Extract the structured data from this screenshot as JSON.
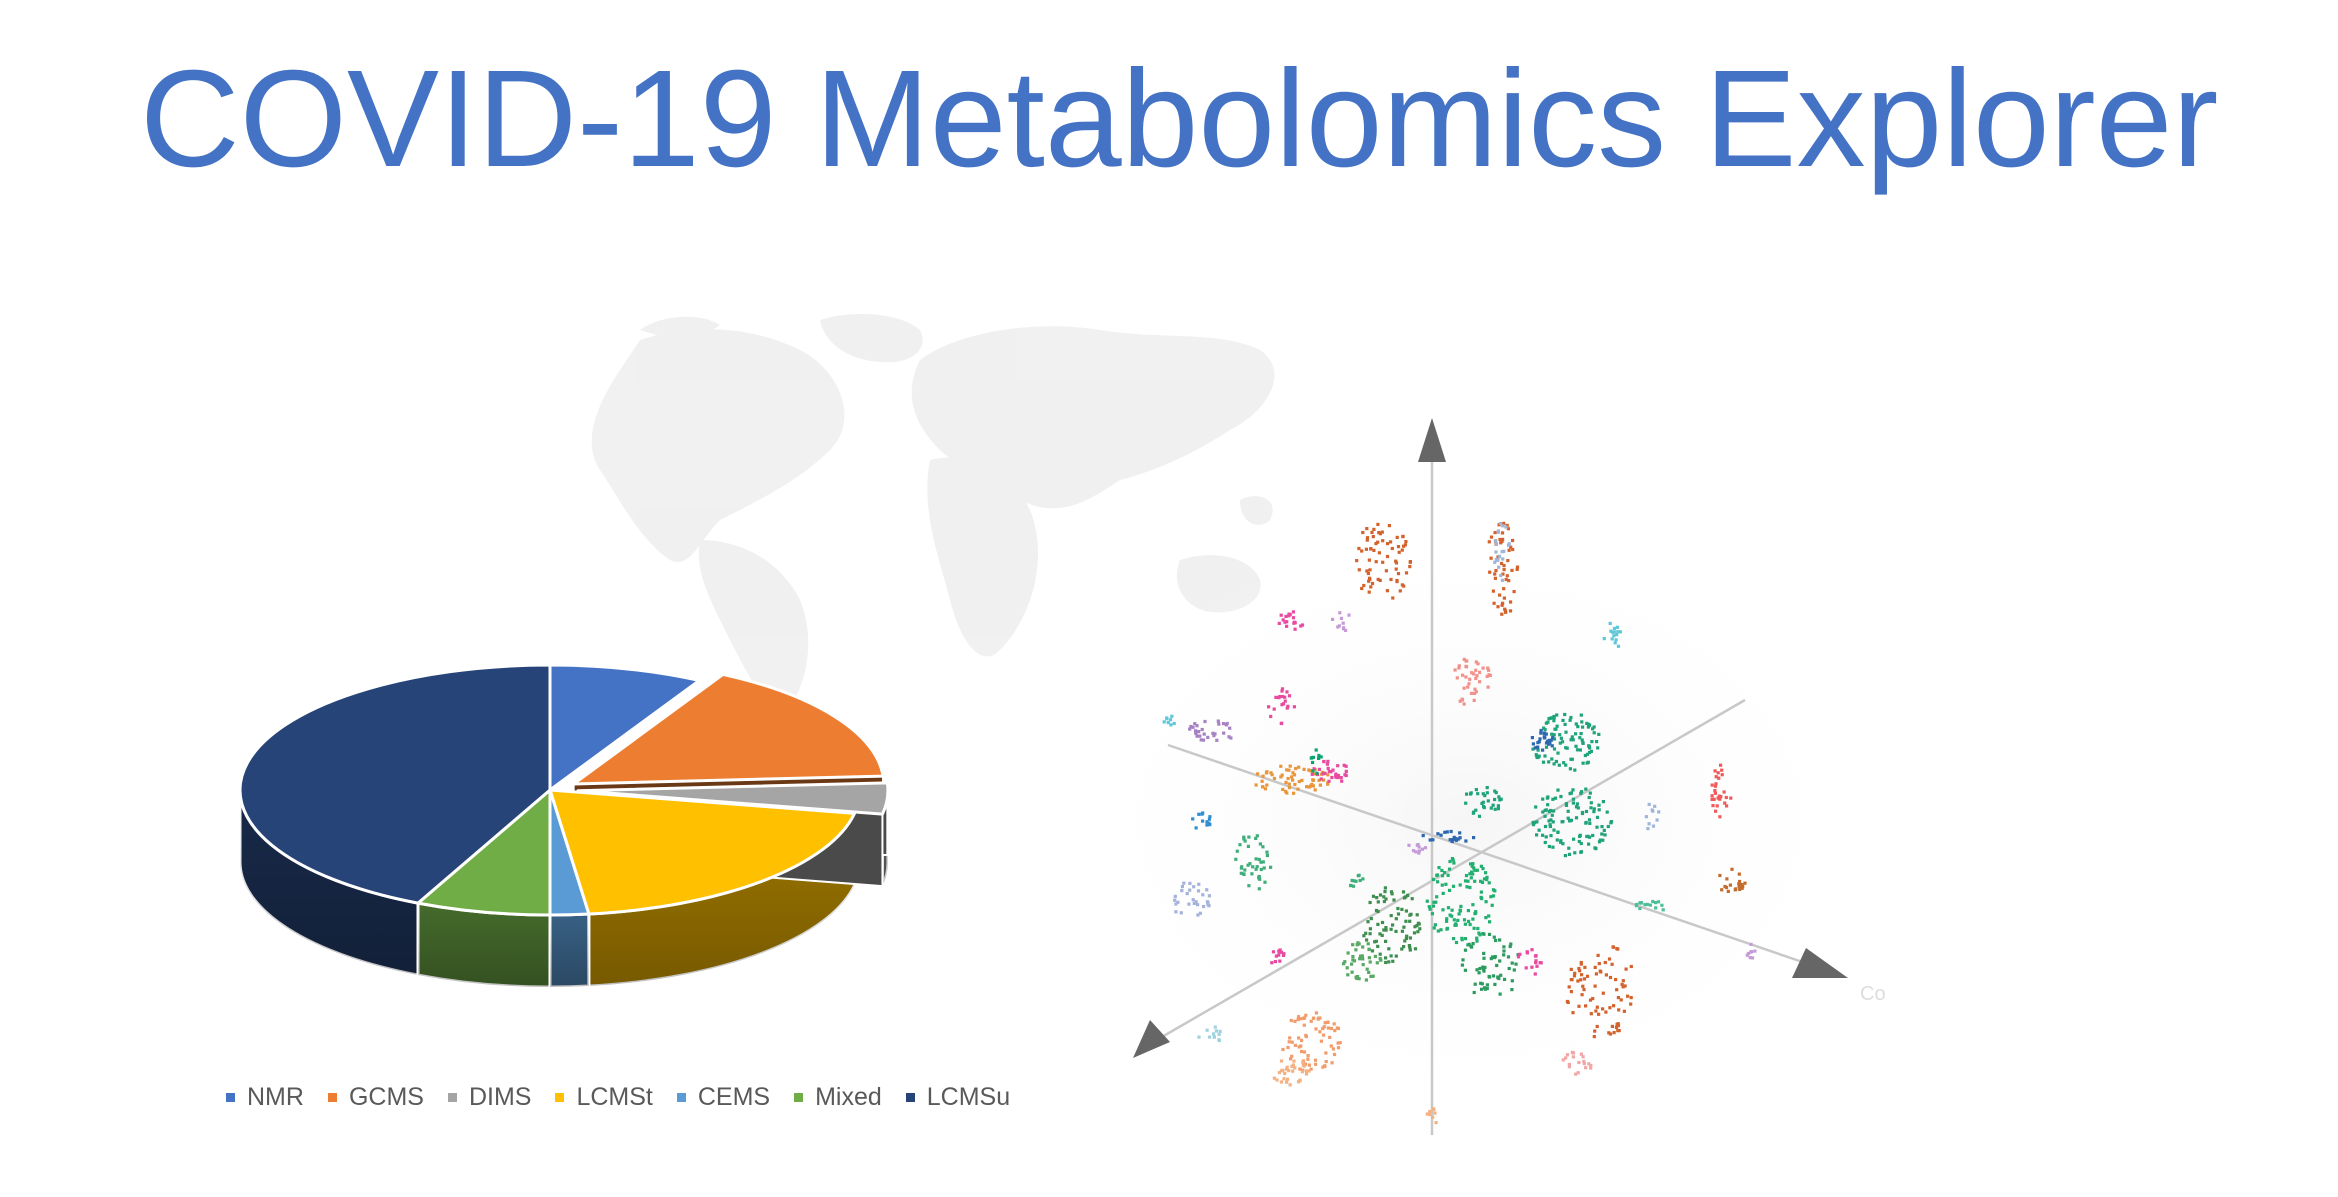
{
  "page": {
    "title": "COVID-19 Metabolomics Explorer"
  },
  "colors": {
    "title": "#4472c4",
    "NMR": "#4472c4",
    "GCMS": "#ed7d31",
    "DIMS": "#a5a5a5",
    "LCMSt": "#ffc000",
    "CEMS": "#5b9bd5",
    "Mixed": "#70ad47",
    "LCMSu": "#264478"
  },
  "chart_data": {
    "type": "pie",
    "title": "",
    "categories": [
      "NMR",
      "GCMS",
      "DIMS",
      "LCMSt",
      "CEMS",
      "Mixed",
      "LCMSu"
    ],
    "values": [
      8,
      16,
      4,
      20,
      2,
      7,
      43
    ],
    "legend_position": "bottom",
    "exploded": [
      "GCMS",
      "DIMS"
    ]
  },
  "scatter_axes": {
    "axis_label_hint": "Co"
  },
  "icons": {
    "world_map": "world-map-watermark",
    "cluster_plot": "3d-cluster-scatter"
  }
}
